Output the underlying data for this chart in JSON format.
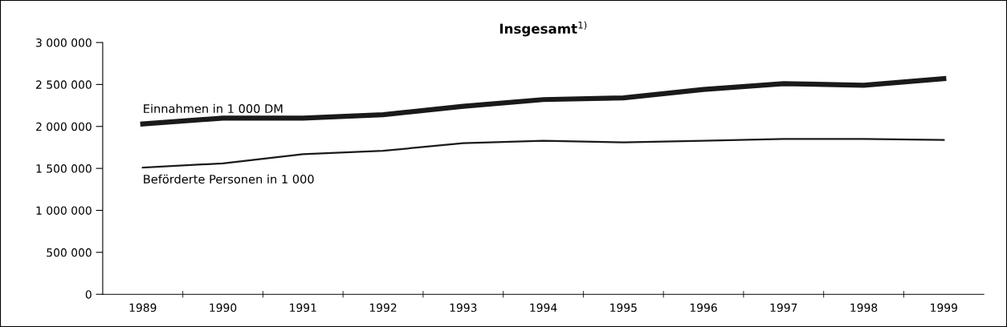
{
  "chart_data": {
    "type": "line",
    "title": "Insgesamt$^{1)}$",
    "categories": [
      "1989",
      "1990",
      "1991",
      "1992",
      "1993",
      "1994",
      "1995",
      "1996",
      "1997",
      "1998",
      "1999"
    ],
    "series": [
      {
        "name": "Einnahmen in 1 000 DM",
        "color": "#1a1a1a",
        "values": [
          2030000,
          2100000,
          2100000,
          2140000,
          2240000,
          2320000,
          2340000,
          2440000,
          2510000,
          2490000,
          2570000
        ]
      },
      {
        "name": "Beförderte Personen in 1 000",
        "color": "#1a1a1a",
        "values": [
          1510000,
          1560000,
          1670000,
          1710000,
          1800000,
          1830000,
          1810000,
          1830000,
          1850000,
          1850000,
          1840000
        ]
      }
    ],
    "ylim": [
      0,
      3000000
    ],
    "yticks": [
      0,
      {
        "value": 500000,
        "label": "500 000"
      },
      {
        "value": 1000000,
        "label": "1 000 000"
      },
      {
        "value": 1500000,
        "label": "1 500 000"
      },
      {
        "value": 2000000,
        "label": "2 000 000"
      },
      {
        "value": 2500000,
        "label": "2 500 000"
      },
      {
        "value": 3000000,
        "label": "3 000 000"
      }
    ],
    "grid": false,
    "legend": false,
    "marker": "none",
    "line_style": "solid"
  }
}
